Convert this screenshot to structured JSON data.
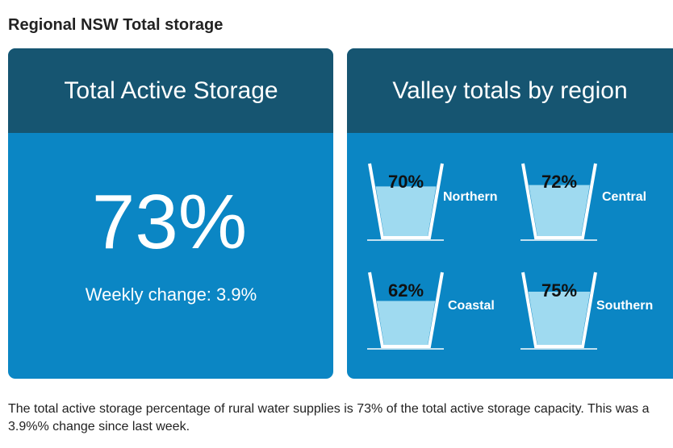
{
  "header": {
    "title": "Regional NSW Total storage"
  },
  "total_panel": {
    "title": "Total Active Storage",
    "value": "73%",
    "weekly_change": "Weekly change: 3.9%"
  },
  "valley_panel": {
    "title": "Valley totals by region",
    "regions": [
      {
        "name": "Northern",
        "value": 70,
        "label": "70%"
      },
      {
        "name": "Central",
        "value": 72,
        "label": "72%"
      },
      {
        "name": "Coastal",
        "value": 62,
        "label": "62%"
      },
      {
        "name": "Southern",
        "value": 75,
        "label": "75%"
      }
    ]
  },
  "footer": {
    "text": "The total active storage percentage of rural water supplies is 73% of the total active storage capacity. This was a 3.9%% change since last week."
  }
}
